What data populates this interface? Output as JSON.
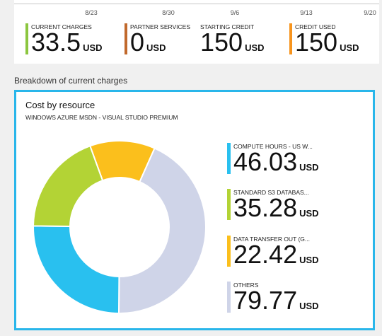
{
  "timeline": {
    "ticks": [
      "8/23",
      "8/30",
      "9/6",
      "9/13",
      "9/20"
    ]
  },
  "metrics": [
    {
      "label": "CURRENT CHARGES",
      "value": "33.5",
      "unit": "USD",
      "color": "#8cc63f"
    },
    {
      "label": "PARTNER SERVICES",
      "value": "0",
      "unit": "USD",
      "color": "#c1692c"
    },
    {
      "label": "STARTING CREDIT",
      "value": "150",
      "unit": "USD",
      "color": ""
    },
    {
      "label": "CREDIT USED",
      "value": "150",
      "unit": "USD",
      "color": "#f7941d"
    }
  ],
  "section_title": "Breakdown of current charges",
  "card": {
    "title": "Cost by resource",
    "subtitle": "WINDOWS AZURE MSDN - VISUAL STUDIO PREMIUM",
    "accent": "#29b6ea"
  },
  "chart_data": {
    "type": "pie",
    "categories": [
      "COMPUTE HOURS - US W...",
      "STANDARD S3 DATABAS...",
      "DATA TRANSFER OUT (G...",
      "OTHERS"
    ],
    "values": [
      46.03,
      35.28,
      22.42,
      79.77
    ],
    "unit": "USD",
    "colors": [
      "#29c0ef",
      "#b3d335",
      "#fbbf1c",
      "#cfd4e8"
    ],
    "title": "Cost by resource"
  }
}
